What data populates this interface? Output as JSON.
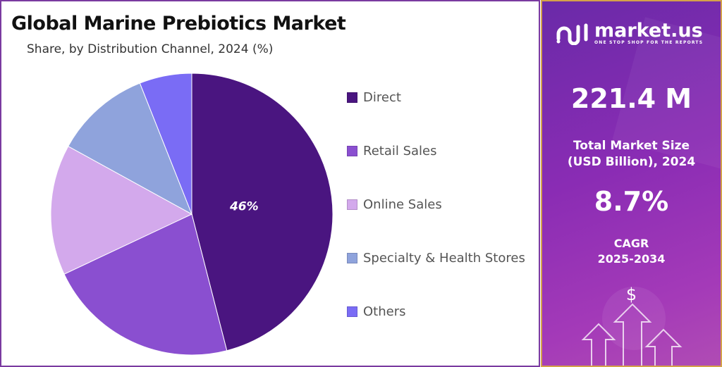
{
  "header": {
    "title": "Global Marine Prebiotics Market",
    "subtitle": "Share, by Distribution Channel, 2024 (%)"
  },
  "chart_data": {
    "type": "pie",
    "title": "Global Marine Prebiotics Market",
    "subtitle": "Share, by Distribution Channel, 2024 (%)",
    "categories": [
      "Direct",
      "Retail Sales",
      "Online Sales",
      "Specialty & Health Stores",
      "Others"
    ],
    "values": [
      46,
      22,
      15,
      11,
      6
    ],
    "colors": [
      "#4a1580",
      "#8a4fd0",
      "#d3a9ec",
      "#8fa3dc",
      "#7a6cf5"
    ],
    "data_labels": [
      "46%",
      "",
      "",
      "",
      ""
    ],
    "start": "12 o'clock, clockwise",
    "legend_placement": "right"
  },
  "side_panel": {
    "brand": "market.us",
    "tagline": "ONE STOP SHOP FOR THE REPORTS",
    "market_size": "221.4 M",
    "market_size_label_1": "Total Market Size",
    "market_size_label_2": "(USD Billion), 2024",
    "cagr": "8.7%",
    "cagr_label_1": "CAGR",
    "cagr_label_2": "2025-2034",
    "dollar": "$"
  }
}
